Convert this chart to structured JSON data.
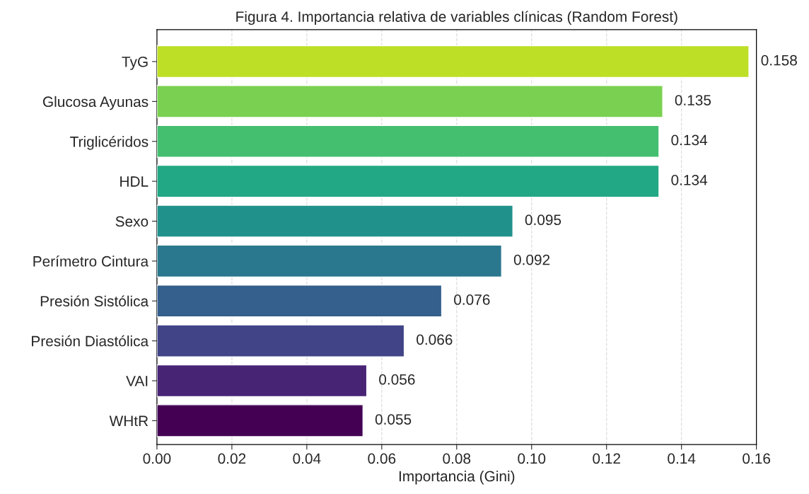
{
  "chart_data": {
    "type": "bar",
    "orientation": "horizontal",
    "title": "Figura 4. Importancia relativa de variables clínicas (Random Forest)",
    "xlabel": "Importancia (Gini)",
    "categories": [
      "TyG",
      "Glucosa Ayunas",
      "Triglicéridos",
      "HDL",
      "Sexo",
      "Perímetro Cintura",
      "Presión Sistólica",
      "Presión Diastólica",
      "VAI",
      "WHtR"
    ],
    "values": [
      0.158,
      0.135,
      0.134,
      0.134,
      0.095,
      0.092,
      0.076,
      0.066,
      0.056,
      0.055
    ],
    "colors": [
      "#bddf26",
      "#7ad151",
      "#44bf70",
      "#22a884",
      "#21918c",
      "#2a788e",
      "#355f8d",
      "#414487",
      "#482475",
      "#440154"
    ],
    "xlim": [
      0,
      0.16
    ],
    "xticks": [
      {
        "value": 0,
        "label": "0.00"
      },
      {
        "value": 0.02,
        "label": "0.02"
      },
      {
        "value": 0.04,
        "label": "0.04"
      },
      {
        "value": 0.06,
        "label": "0.06"
      },
      {
        "value": 0.08,
        "label": "0.08"
      },
      {
        "value": 0.1,
        "label": "0.10"
      },
      {
        "value": 0.12,
        "label": "0.12"
      },
      {
        "value": 0.14,
        "label": "0.14"
      },
      {
        "value": 0.16,
        "label": "0.16"
      }
    ],
    "grid": "x",
    "data_labels": true
  }
}
